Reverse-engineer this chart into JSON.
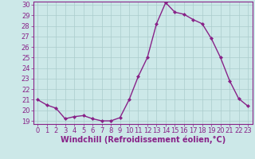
{
  "x": [
    0,
    1,
    2,
    3,
    4,
    5,
    6,
    7,
    8,
    9,
    10,
    11,
    12,
    13,
    14,
    15,
    16,
    17,
    18,
    19,
    20,
    21,
    22,
    23
  ],
  "y": [
    21.0,
    20.5,
    20.2,
    19.2,
    19.4,
    19.5,
    19.2,
    19.0,
    19.0,
    19.3,
    21.0,
    23.2,
    25.0,
    28.2,
    30.2,
    29.3,
    29.1,
    28.6,
    28.2,
    26.8,
    25.0,
    22.8,
    21.1,
    20.4
  ],
  "line_color": "#882288",
  "marker": "D",
  "marker_size": 2.0,
  "line_width": 1.0,
  "bg_color": "#cce8e8",
  "grid_color": "#aacccc",
  "xlabel": "Windchill (Refroidissement éolien,°C)",
  "ylim": [
    19,
    30
  ],
  "xlim": [
    -0.5,
    23.5
  ],
  "yticks": [
    19,
    20,
    21,
    22,
    23,
    24,
    25,
    26,
    27,
    28,
    29,
    30
  ],
  "xticks": [
    0,
    1,
    2,
    3,
    4,
    5,
    6,
    7,
    8,
    9,
    10,
    11,
    12,
    13,
    14,
    15,
    16,
    17,
    18,
    19,
    20,
    21,
    22,
    23
  ],
  "tick_label_size": 6.0,
  "xlabel_size": 7.0,
  "xlabel_color": "#882288",
  "tick_color": "#882288",
  "axis_color": "#882288",
  "spine_color": "#882288"
}
